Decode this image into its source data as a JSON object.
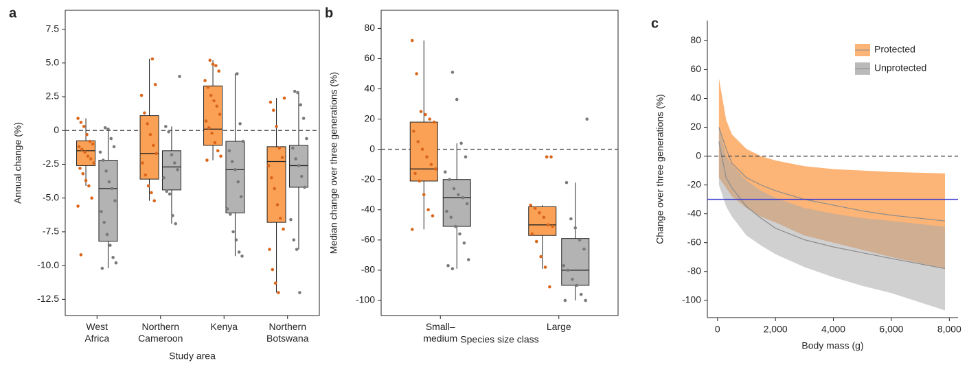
{
  "chart_data": [
    {
      "type": "box",
      "panel": "a",
      "ylabel": "Annual change (%)",
      "xlabel": "Study area",
      "categories": [
        "West Africa",
        "Northern Cameroon",
        "Kenya",
        "Northern Botswana"
      ],
      "ylim": [
        -13.7,
        8.9
      ],
      "yticks": [
        7.5,
        {
          "value": 5,
          "label": "5.0"
        },
        2.5,
        0,
        -2.5,
        {
          "value": -5,
          "label": "-5.0"
        },
        -7.5,
        {
          "value": -10,
          "label": "-10.0"
        },
        -12.5
      ],
      "reference_lines": [
        {
          "value": 0,
          "style": "dashed",
          "color": "#555555"
        }
      ],
      "series": [
        {
          "color": "#fba155",
          "point_color": "#d9661b",
          "boxes": [
            {
              "whisker_low": -4.1,
              "q1": -2.6,
              "median": -1.5,
              "q3": -0.76,
              "whisker_high": 0.9,
              "points": [
                0.9,
                0.6,
                0.3,
                -0.3,
                -0.8,
                -1.0,
                -1.2,
                -1.4,
                -1.6,
                -1.9,
                -2.1,
                -2.4,
                -2.8,
                -3.2,
                -3.7,
                -4.1,
                -5.0,
                -5.6,
                -9.2
              ]
            },
            {
              "whisker_low": -5.2,
              "q1": -3.6,
              "median": -1.7,
              "q3": 1.1,
              "whisker_high": 5.3,
              "points": [
                5.3,
                3.4,
                2.6,
                1.3,
                0.5,
                -0.3,
                -1.1,
                -1.7,
                -2.4,
                -3.3,
                -4.1,
                -4.6,
                -5.2
              ]
            },
            {
              "whisker_low": -2.2,
              "q1": -1.1,
              "median": 0.1,
              "q3": 3.3,
              "whisker_high": 5.2,
              "points": [
                5.2,
                4.9,
                4.8,
                4.4,
                3.7,
                3.2,
                2.6,
                2.2,
                1.8,
                1.2,
                0.7,
                0.2,
                -0.2,
                -0.9,
                -1.5,
                -1.9,
                -2.2
              ]
            },
            {
              "whisker_low": -12.0,
              "q1": -6.8,
              "median": -2.3,
              "q3": -1.2,
              "whisker_high": 2.4,
              "points": [
                2.4,
                2.1,
                1.5,
                0.3,
                -1.3,
                -2.0,
                -2.6,
                -3.5,
                -4.3,
                -5.5,
                -6.5,
                -7.3,
                -8.8,
                -10.3,
                -11.3,
                -12.0
              ]
            }
          ]
        },
        {
          "color": "#b3b3b3",
          "point_color": "#7a7a7a",
          "boxes": [
            {
              "whisker_low": -10.2,
              "q1": -8.2,
              "median": -4.3,
              "q3": -2.2,
              "whisker_high": 0.2,
              "points": [
                0.2,
                0.1,
                -0.6,
                -1.2,
                -1.6,
                -2.2,
                -3.0,
                -3.8,
                -4.3,
                -5.2,
                -6.0,
                -6.8,
                -7.7,
                -8.5,
                -9.4,
                -9.8,
                -10.2
              ]
            },
            {
              "whisker_low": -6.9,
              "q1": -4.4,
              "median": -2.7,
              "q3": -1.5,
              "whisker_high": 0.3,
              "points": [
                4.0,
                0.3,
                -0.1,
                -1.8,
                -2.4,
                -2.9,
                -3.5,
                -4.5,
                -4.7,
                -6.3,
                -6.9
              ]
            },
            {
              "whisker_low": -9.3,
              "q1": -6.1,
              "median": -2.9,
              "q3": -0.8,
              "whisker_high": 4.2,
              "points": [
                4.2,
                0.5,
                -0.8,
                -1.5,
                -2.3,
                -2.9,
                -3.8,
                -4.9,
                -5.8,
                -6.2,
                -7.5,
                -8.1,
                -9.0,
                -9.3
              ]
            },
            {
              "whisker_low": -8.8,
              "q1": -4.2,
              "median": -2.6,
              "q3": -1.1,
              "whisker_high": 2.9,
              "points": [
                2.9,
                2.8,
                1.9,
                0.9,
                -0.6,
                -1.3,
                -2.1,
                -2.6,
                -3.4,
                -4.2,
                -6.6,
                -8.1,
                -8.8,
                -12.0
              ]
            }
          ]
        }
      ]
    },
    {
      "type": "box",
      "panel": "b",
      "ylabel": "Median change over three generations (%)",
      "xlabel": "Species size class",
      "categories": [
        "Small–medium",
        "Large"
      ],
      "ylim": [
        -110,
        92
      ],
      "yticks": [
        80,
        60,
        40,
        20,
        0,
        -20,
        -40,
        -60,
        -80,
        -100
      ],
      "reference_lines": [
        {
          "value": 0,
          "style": "dashed",
          "color": "#555555"
        }
      ],
      "series": [
        {
          "color": "#fba155",
          "point_color": "#d9661b",
          "boxes": [
            {
              "whisker_low": -53,
              "q1": -21,
              "median": -13,
              "q3": 18,
              "whisker_high": 72,
              "points": [
                72,
                50,
                25,
                23,
                20,
                18,
                12,
                5,
                0,
                -5,
                -10,
                -13,
                -16,
                -21,
                -30,
                -40,
                -44,
                -53
              ]
            },
            {
              "whisker_low": -79,
              "q1": -57,
              "median": -50,
              "q3": -38,
              "whisker_high": -37,
              "points": [
                -5,
                -5,
                -37,
                -39,
                -42,
                -45,
                -50,
                -51,
                -56,
                -61,
                -71,
                -78,
                -91
              ]
            }
          ]
        },
        {
          "color": "#b3b3b3",
          "point_color": "#7a7a7a",
          "boxes": [
            {
              "whisker_low": -79,
              "q1": -51,
              "median": -32,
              "q3": -20,
              "whisker_high": 4,
              "points": [
                51,
                33,
                4,
                -5,
                -15,
                -20,
                -26,
                -30,
                -32,
                -36,
                -41,
                -45,
                -51,
                -56,
                -62,
                -73,
                -77,
                -79
              ]
            },
            {
              "whisker_low": -100,
              "q1": -90,
              "median": -80,
              "q3": -59,
              "whisker_high": -22,
              "points": [
                20,
                -22,
                -46,
                -52,
                -60,
                -66,
                -77,
                -80,
                -86,
                -90,
                -96,
                -100,
                -100
              ]
            }
          ]
        }
      ]
    },
    {
      "type": "band",
      "panel": "c",
      "ylabel": "Change over three generations (%)",
      "xlabel": "Body mass (g)",
      "x": [
        50,
        300,
        500,
        1000,
        1500,
        2000,
        3000,
        4000,
        5000,
        6000,
        7850
      ],
      "xlim": [
        -350,
        8300
      ],
      "xticks": [
        0,
        {
          "value": 2000,
          "label": "2,000"
        },
        {
          "value": 4000,
          "label": "4,000"
        },
        {
          "value": 6000,
          "label": "6,000"
        },
        {
          "value": 8000,
          "label": "8,000"
        }
      ],
      "ylim": [
        -112,
        94
      ],
      "yticks": [
        80,
        60,
        40,
        20,
        0,
        -20,
        -40,
        -60,
        -80,
        -100
      ],
      "reference_lines": [
        {
          "value": 0,
          "style": "dashed",
          "color": "#555555"
        },
        {
          "value": -30,
          "color": "#3b3bd0"
        }
      ],
      "legend": "top-right",
      "series": [
        {
          "name": "Protected",
          "color": "#fba155",
          "line_color": "#8c8c8c",
          "values": [
            20,
            5,
            -5,
            -15,
            -20,
            -24,
            -30,
            -34,
            -38,
            -41,
            -45
          ],
          "upper": [
            54,
            25,
            15,
            5,
            0,
            -3,
            -7,
            -9,
            -10,
            -11,
            -12
          ],
          "lower": [
            -15,
            -22,
            -28,
            -36,
            -42,
            -46,
            -55,
            -60,
            -65,
            -70,
            -78
          ]
        },
        {
          "name": "Unprotected",
          "color": "#a9a9a9",
          "line_color": "#8c8c8c",
          "values": [
            10,
            -15,
            -22,
            -35,
            -43,
            -50,
            -58,
            -63,
            -67,
            -71,
            -78
          ],
          "upper": [
            20,
            0,
            -6,
            -17,
            -24,
            -29,
            -36,
            -40,
            -43,
            -45,
            -49
          ],
          "lower": [
            -20,
            -35,
            -42,
            -55,
            -62,
            -68,
            -77,
            -84,
            -90,
            -95,
            -107
          ]
        }
      ]
    }
  ]
}
